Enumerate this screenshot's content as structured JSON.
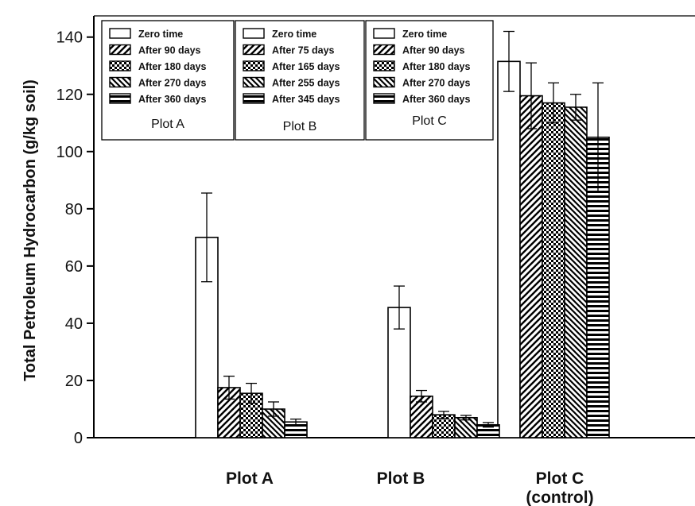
{
  "chart_data": {
    "type": "bar",
    "ylabel": "Total Petroleum Hydrocarbon (g/kg soil)",
    "xlabel": "",
    "ylim": [
      0,
      150
    ],
    "yticks": [
      0,
      20,
      40,
      60,
      80,
      100,
      120,
      140
    ],
    "categories": [
      {
        "name": "Plot A",
        "lines": [
          "Plot A"
        ]
      },
      {
        "name": "Plot B",
        "lines": [
          "Plot B"
        ]
      },
      {
        "name": "Plot C (control)",
        "lines": [
          "Plot C",
          "(control)"
        ]
      }
    ],
    "series": [
      {
        "pattern": "empty",
        "values": [
          70,
          45.5,
          131.5
        ],
        "errors": [
          15.5,
          7.5,
          10.5
        ]
      },
      {
        "pattern": "diag-forward",
        "values": [
          17.5,
          14.5,
          119.5
        ],
        "errors": [
          4,
          2,
          11.5
        ]
      },
      {
        "pattern": "checker",
        "values": [
          15.5,
          8,
          117
        ],
        "errors": [
          3.5,
          1.2,
          7
        ]
      },
      {
        "pattern": "diag-back",
        "values": [
          10,
          7,
          115.5
        ],
        "errors": [
          2.5,
          0.8,
          4.5
        ]
      },
      {
        "pattern": "horizontal",
        "values": [
          5.5,
          4.5,
          105
        ],
        "errors": [
          1,
          0.8,
          19
        ]
      }
    ],
    "grid": false,
    "legends": [
      {
        "title": "Plot A",
        "entries": [
          "Zero time",
          "After 90 days",
          "After 180 days",
          "After 270 days",
          "After 360 days"
        ]
      },
      {
        "title": "Plot B",
        "entries": [
          "Zero time",
          "After 75 days",
          "After 165 days",
          "After 255 days",
          "After 345 days"
        ]
      },
      {
        "title": "Plot C",
        "entries": [
          "Zero time",
          "After 90 days",
          "After 180 days",
          "After 270 days",
          "After 360 days"
        ]
      }
    ],
    "legend_placement": "top-left"
  }
}
